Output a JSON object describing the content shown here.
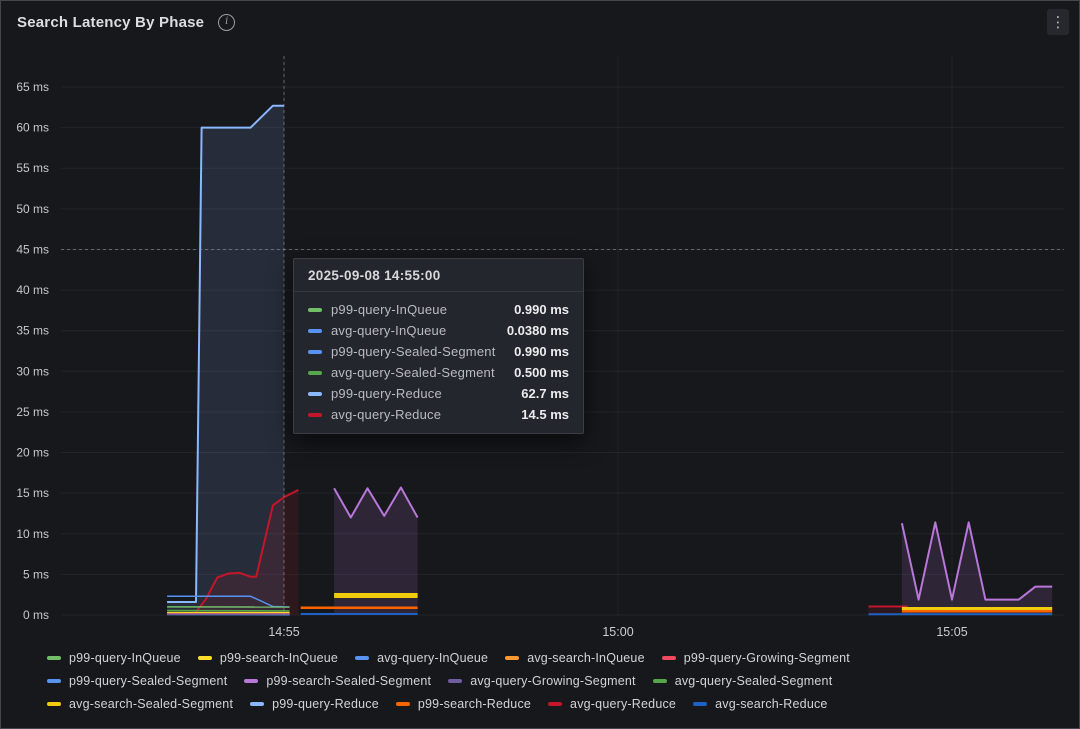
{
  "panel": {
    "title": "Search Latency By Phase"
  },
  "icons": {
    "info": "i",
    "menu": "⋮"
  },
  "tooltip": {
    "timestamp": "2025-09-08 14:55:00",
    "rows": [
      {
        "label": "p99-query-InQueue",
        "value": "0.990 ms",
        "color": "#73BF69"
      },
      {
        "label": "avg-query-InQueue",
        "value": "0.0380 ms",
        "color": "#5794F2"
      },
      {
        "label": "p99-query-Sealed-Segment",
        "value": "0.990 ms",
        "color": "#5794F2"
      },
      {
        "label": "avg-query-Sealed-Segment",
        "value": "0.500 ms",
        "color": "#56A64B"
      },
      {
        "label": "p99-query-Reduce",
        "value": "62.7 ms",
        "color": "#8AB8FF"
      },
      {
        "label": "avg-query-Reduce",
        "value": "14.5 ms",
        "color": "#C4162A"
      }
    ]
  },
  "legend": {
    "rows": [
      [
        {
          "label": "p99-query-InQueue",
          "color": "#73BF69"
        },
        {
          "label": "p99-search-InQueue",
          "color": "#FADE2A"
        },
        {
          "label": "avg-query-InQueue",
          "color": "#5794F2"
        },
        {
          "label": "avg-search-InQueue",
          "color": "#FF9830"
        },
        {
          "label": "p99-query-Growing-Segment",
          "color": "#F2495C"
        }
      ],
      [
        {
          "label": "p99-query-Sealed-Segment",
          "color": "#5794F2"
        },
        {
          "label": "p99-search-Sealed-Segment",
          "color": "#B877D9"
        },
        {
          "label": "avg-query-Growing-Segment",
          "color": "#705DA0"
        },
        {
          "label": "avg-query-Sealed-Segment",
          "color": "#56A64B"
        }
      ],
      [
        {
          "label": "avg-search-Sealed-Segment",
          "color": "#F2CC0C"
        },
        {
          "label": "p99-query-Reduce",
          "color": "#8AB8FF"
        },
        {
          "label": "p99-search-Reduce",
          "color": "#FA6400"
        },
        {
          "label": "avg-query-Reduce",
          "color": "#C4162A"
        },
        {
          "label": "avg-search-Reduce",
          "color": "#1F60C4"
        }
      ]
    ]
  },
  "chart_data": {
    "type": "line",
    "unit": "ms",
    "y_axis": {
      "min": 0,
      "max": 65,
      "tick_step": 5,
      "ticks": [
        {
          "v": 0,
          "label": "0 ms"
        },
        {
          "v": 5,
          "label": "5 ms"
        },
        {
          "v": 10,
          "label": "10 ms"
        },
        {
          "v": 15,
          "label": "15 ms"
        },
        {
          "v": 20,
          "label": "20 ms"
        },
        {
          "v": 25,
          "label": "25 ms"
        },
        {
          "v": 30,
          "label": "30 ms"
        },
        {
          "v": 35,
          "label": "35 ms"
        },
        {
          "v": 40,
          "label": "40 ms"
        },
        {
          "v": 45,
          "label": "45 ms"
        },
        {
          "v": 50,
          "label": "50 ms"
        },
        {
          "v": 55,
          "label": "55 ms"
        },
        {
          "v": 60,
          "label": "60 ms"
        },
        {
          "v": 65,
          "label": "65 ms"
        }
      ]
    },
    "x_axis": {
      "ticks": [
        {
          "t": "14:55:00",
          "label": "14:55"
        },
        {
          "t": "15:00:00",
          "label": "15:00"
        },
        {
          "t": "15:05:00",
          "label": "15:05"
        }
      ]
    },
    "crosshair": {
      "time": "14:55:00",
      "value_ms": 45
    },
    "series": [
      {
        "name": "p99-query-Reduce",
        "color": "#8AB8FF",
        "width": 2,
        "fill_opacity": 0.13,
        "segments": [
          {
            "pts": [
              [
                "14:53:15",
                1.6
              ],
              [
                "14:53:41",
                1.6
              ],
              [
                "14:53:46",
                60
              ],
              [
                "14:54:30",
                60
              ],
              [
                "14:54:50",
                62.7
              ],
              [
                "14:55:00",
                62.7
              ]
            ]
          }
        ]
      },
      {
        "name": "avg-query-Reduce",
        "color": "#C4162A",
        "width": 2,
        "fill_opacity": 0.12,
        "segments": [
          {
            "pts": [
              [
                "14:53:15",
                0.2
              ],
              [
                "14:53:40",
                0.2
              ],
              [
                "14:53:50",
                2.0
              ],
              [
                "14:54:00",
                4.6
              ],
              [
                "14:54:10",
                5.1
              ],
              [
                "14:54:20",
                5.2
              ],
              [
                "14:54:30",
                4.7
              ],
              [
                "14:54:35",
                4.7
              ],
              [
                "14:54:50",
                13.5
              ],
              [
                "14:55:00",
                14.5
              ],
              [
                "14:55:13",
                15.4
              ]
            ]
          },
          {
            "pts": [
              [
                "15:03:45",
                1.05
              ],
              [
                "15:04:20",
                1.05
              ]
            ]
          }
        ]
      },
      {
        "name": "p99-query-Sealed-Segment",
        "color": "#5794F2",
        "width": 1.5,
        "segments": [
          {
            "pts": [
              [
                "14:53:15",
                2.3
              ],
              [
                "14:54:30",
                2.3
              ],
              [
                "14:54:50",
                1.05
              ],
              [
                "14:55:05",
                0.99
              ]
            ]
          }
        ]
      },
      {
        "name": "p99-query-InQueue",
        "color": "#73BF69",
        "width": 1.5,
        "segments": [
          {
            "pts": [
              [
                "14:53:15",
                1.0
              ],
              [
                "14:55:05",
                0.99
              ]
            ]
          }
        ]
      },
      {
        "name": "avg-query-Sealed-Segment",
        "color": "#56A64B",
        "width": 1.5,
        "segments": [
          {
            "pts": [
              [
                "14:53:15",
                0.55
              ],
              [
                "14:55:05",
                0.5
              ]
            ]
          }
        ]
      },
      {
        "name": "avg-query-InQueue",
        "color": "#5794F2",
        "width": 1.5,
        "segments": [
          {
            "pts": [
              [
                "14:53:15",
                0.06
              ],
              [
                "14:55:05",
                0.04
              ]
            ]
          }
        ]
      },
      {
        "name": "p99-search-InQueue",
        "color": "#FADE2A",
        "width": 1.5,
        "segments": [
          {
            "pts": [
              [
                "14:53:15",
                0.3
              ],
              [
                "14:55:05",
                0.3
              ]
            ]
          }
        ]
      },
      {
        "name": "avg-search-InQueue",
        "color": "#FF9830",
        "width": 1.5,
        "segments": [
          {
            "pts": [
              [
                "14:53:15",
                0.17
              ],
              [
                "14:55:05",
                0.17
              ]
            ]
          }
        ]
      },
      {
        "name": "p99-query-Growing-Segment",
        "color": "#F2495C",
        "width": 1.5,
        "segments": [
          {
            "pts": [
              [
                "14:53:15",
                0.12
              ],
              [
                "14:55:05",
                0.12
              ]
            ]
          }
        ]
      },
      {
        "name": "avg-query-Growing-Segment",
        "color": "#705DA0",
        "width": 1.5,
        "segments": [
          {
            "pts": [
              [
                "14:53:15",
                0.09
              ],
              [
                "14:55:05",
                0.09
              ]
            ]
          }
        ]
      },
      {
        "name": "p99-search-Sealed-Segment",
        "color": "#B877D9",
        "width": 2,
        "fill_opacity": 0.15,
        "segments": [
          {
            "pts": [
              [
                "14:55:45",
                15.6
              ],
              [
                "14:56:00",
                12.0
              ],
              [
                "14:56:15",
                15.6
              ],
              [
                "14:56:30",
                12.2
              ],
              [
                "14:56:45",
                15.7
              ],
              [
                "14:57:00",
                12.0
              ]
            ]
          },
          {
            "pts": [
              [
                "15:04:15",
                11.3
              ],
              [
                "15:04:30",
                1.9
              ],
              [
                "15:04:45",
                11.4
              ],
              [
                "15:05:00",
                1.9
              ],
              [
                "15:05:15",
                11.4
              ],
              [
                "15:05:30",
                1.9
              ],
              [
                "15:06:00",
                1.9
              ],
              [
                "15:06:15",
                3.5
              ],
              [
                "15:06:30",
                3.5
              ]
            ]
          }
        ]
      },
      {
        "name": "avg-search-Sealed-Segment",
        "color": "#F2CC0C",
        "width": 2,
        "segments": [
          {
            "w": 5,
            "pts": [
              [
                "14:55:45",
                2.4
              ],
              [
                "14:57:00",
                2.4
              ]
            ]
          },
          {
            "w": 3,
            "pts": [
              [
                "15:04:15",
                0.8
              ],
              [
                "15:06:30",
                0.8
              ]
            ]
          }
        ]
      },
      {
        "name": "p99-search-Reduce",
        "color": "#FA6400",
        "width": 2.5,
        "segments": [
          {
            "pts": [
              [
                "14:55:15",
                0.9
              ],
              [
                "14:57:00",
                0.9
              ]
            ]
          },
          {
            "pts": [
              [
                "15:04:15",
                0.45
              ],
              [
                "15:06:30",
                0.45
              ]
            ]
          }
        ]
      },
      {
        "name": "avg-search-Reduce",
        "color": "#1F60C4",
        "width": 2,
        "segments": [
          {
            "pts": [
              [
                "14:55:15",
                0.12
              ],
              [
                "14:57:00",
                0.12
              ]
            ]
          },
          {
            "pts": [
              [
                "15:03:45",
                0.1
              ],
              [
                "15:06:30",
                0.1
              ]
            ]
          }
        ]
      }
    ]
  }
}
